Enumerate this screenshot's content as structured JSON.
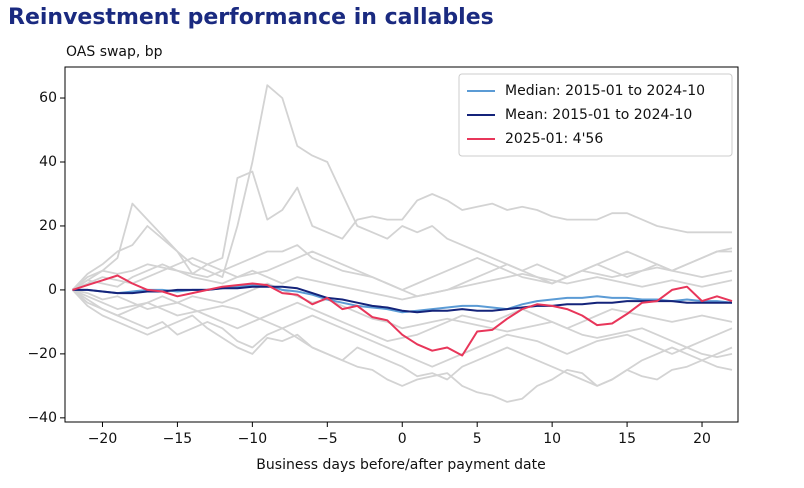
{
  "chart_data": {
    "type": "line",
    "title": "Reinvestment performance in callables",
    "ylabel": "OAS swap, bp",
    "xlabel": "Business days before/after payment date",
    "x": [
      -22,
      -21,
      -20,
      -19,
      -18,
      -17,
      -16,
      -15,
      -14,
      -13,
      -12,
      -11,
      -10,
      -9,
      -8,
      -7,
      -6,
      -5,
      -4,
      -3,
      -2,
      -1,
      0,
      1,
      2,
      3,
      4,
      5,
      6,
      7,
      8,
      9,
      10,
      11,
      12,
      13,
      14,
      15,
      16,
      17,
      18,
      19,
      20,
      21,
      22
    ],
    "xlim": [
      -22.5,
      22.4
    ],
    "ylim": [
      -41.3,
      69.7
    ],
    "xticks": [
      {
        "value": -20,
        "label": "−20"
      },
      {
        "value": -15,
        "label": "−15"
      },
      {
        "value": -10,
        "label": "−10"
      },
      {
        "value": -5,
        "label": "−5"
      },
      0,
      5,
      10,
      15,
      20
    ],
    "yticks": [
      {
        "value": -40,
        "label": "−40"
      },
      {
        "value": -20,
        "label": "−20"
      },
      0,
      20,
      40,
      60
    ],
    "legend": "upper right",
    "background_series": [
      {
        "color": "#d3d3d3",
        "values": [
          0,
          5,
          8,
          12,
          14,
          20,
          16,
          12,
          8,
          6,
          4,
          20,
          40,
          64,
          60,
          45,
          42,
          40,
          30,
          20,
          18,
          16,
          20,
          18,
          20,
          16,
          14,
          12,
          10,
          8,
          6,
          8,
          6,
          4,
          6,
          8,
          6,
          4,
          6,
          8,
          6,
          8,
          10,
          12,
          12
        ]
      },
      {
        "color": "#d3d3d3",
        "values": [
          0,
          3,
          6,
          10,
          27,
          22,
          17,
          12,
          5,
          8,
          10,
          35,
          37,
          22,
          25,
          32,
          20,
          18,
          16,
          22,
          23,
          22,
          22,
          28,
          30,
          28,
          25,
          26,
          27,
          25,
          26,
          25,
          23,
          22,
          22,
          22,
          24,
          24,
          22,
          20,
          19,
          18,
          18,
          18,
          18
        ]
      },
      {
        "color": "#d3d3d3",
        "values": [
          0,
          -5,
          -8,
          -10,
          -12,
          -14,
          -12,
          -10,
          -8,
          -12,
          -15,
          -18,
          -20,
          -15,
          -16,
          -14,
          -18,
          -20,
          -22,
          -24,
          -25,
          -28,
          -30,
          -28,
          -27,
          -26,
          -30,
          -32,
          -33,
          -35,
          -34,
          -30,
          -28,
          -25,
          -26,
          -30,
          -28,
          -25,
          -27,
          -28,
          -25,
          -24,
          -22,
          -20,
          -18
        ]
      },
      {
        "color": "#d3d3d3",
        "values": [
          0,
          -3,
          -6,
          -8,
          -10,
          -12,
          -10,
          -14,
          -12,
          -10,
          -12,
          -16,
          -18,
          -14,
          -12,
          -15,
          -18,
          -20,
          -22,
          -18,
          -20,
          -22,
          -24,
          -27,
          -26,
          -28,
          -24,
          -22,
          -20,
          -18,
          -20,
          -22,
          -24,
          -26,
          -28,
          -30,
          -28,
          -25,
          -22,
          -20,
          -18,
          -20,
          -22,
          -24,
          -25
        ]
      },
      {
        "color": "#d3d3d3",
        "values": [
          0,
          4,
          6,
          5,
          6,
          8,
          7,
          6,
          5,
          4,
          6,
          8,
          10,
          12,
          12,
          14,
          10,
          8,
          6,
          5,
          4,
          2,
          0,
          -2,
          -1,
          0,
          2,
          4,
          6,
          8,
          6,
          4,
          2,
          4,
          6,
          5,
          4,
          5,
          6,
          7,
          6,
          5,
          4,
          5,
          6
        ]
      },
      {
        "color": "#d3d3d3",
        "values": [
          0,
          -2,
          -4,
          -6,
          -5,
          -4,
          -6,
          -8,
          -7,
          -6,
          -5,
          -6,
          -8,
          -10,
          -12,
          -10,
          -8,
          -10,
          -12,
          -14,
          -16,
          -18,
          -20,
          -22,
          -24,
          -22,
          -20,
          -18,
          -16,
          -14,
          -15,
          -16,
          -18,
          -20,
          -18,
          -16,
          -15,
          -14,
          -16,
          -18,
          -20,
          -18,
          -16,
          -14,
          -12
        ]
      },
      {
        "color": "#d3d3d3",
        "values": [
          0,
          2,
          4,
          3,
          2,
          4,
          6,
          8,
          10,
          8,
          6,
          4,
          5,
          6,
          8,
          10,
          12,
          10,
          8,
          6,
          4,
          2,
          0,
          2,
          4,
          6,
          8,
          10,
          8,
          6,
          4,
          3,
          2,
          4,
          6,
          8,
          10,
          12,
          10,
          8,
          6,
          8,
          10,
          12,
          13
        ]
      },
      {
        "color": "#d3d3d3",
        "values": [
          0,
          -1,
          -3,
          -2,
          -4,
          -6,
          -5,
          -4,
          -2,
          -3,
          -4,
          -2,
          0,
          2,
          0,
          -2,
          -4,
          -3,
          -5,
          -7,
          -9,
          -10,
          -12,
          -11,
          -10,
          -9,
          -10,
          -11,
          -12,
          -13,
          -12,
          -11,
          -10,
          -12,
          -14,
          -15,
          -14,
          -13,
          -12,
          -14,
          -16,
          -18,
          -20,
          -21,
          -20
        ]
      },
      {
        "color": "#d3d3d3",
        "values": [
          0,
          3,
          2,
          1,
          4,
          6,
          8,
          6,
          4,
          3,
          2,
          4,
          6,
          4,
          2,
          4,
          3,
          2,
          1,
          0,
          -1,
          -2,
          -3,
          -2,
          -1,
          0,
          1,
          2,
          3,
          4,
          5,
          4,
          3,
          2,
          3,
          4,
          3,
          2,
          1,
          2,
          3,
          2,
          1,
          2,
          3
        ]
      },
      {
        "color": "#d3d3d3",
        "values": [
          0,
          -4,
          -6,
          -8,
          -6,
          -4,
          -2,
          -4,
          -6,
          -8,
          -10,
          -12,
          -10,
          -8,
          -6,
          -4,
          -6,
          -8,
          -10,
          -12,
          -14,
          -16,
          -15,
          -14,
          -12,
          -10,
          -8,
          -9,
          -10,
          -8,
          -6,
          -8,
          -10,
          -12,
          -10,
          -8,
          -6,
          -7,
          -8,
          -9,
          -10,
          -9,
          -8,
          -9,
          -10
        ]
      }
    ],
    "series": [
      {
        "name": "Median: 2015-01 to 2024-10",
        "color": "#5b9bd5",
        "values": [
          0,
          0,
          -0.5,
          -1,
          -0.5,
          0,
          0,
          -0.5,
          0,
          0,
          0.5,
          1,
          1.5,
          1.5,
          0,
          -0.5,
          -1.5,
          -3,
          -4,
          -5,
          -5.5,
          -6,
          -7,
          -6.5,
          -6,
          -5.5,
          -5,
          -5,
          -5.5,
          -6,
          -4.5,
          -3.5,
          -3,
          -2.5,
          -2.5,
          -2,
          -2.5,
          -2.5,
          -3,
          -3,
          -3.5,
          -3,
          -3.5,
          -3.5,
          -4
        ]
      },
      {
        "name": "Mean: 2015-01 to 2024-10",
        "color": "#14237a",
        "values": [
          0,
          0,
          -0.5,
          -1,
          -1,
          -0.5,
          -0.5,
          0,
          0,
          0,
          0.5,
          0.5,
          1,
          1,
          1,
          0.5,
          -1,
          -2.5,
          -3,
          -4,
          -5,
          -5.5,
          -6.5,
          -7,
          -6.5,
          -6.5,
          -6,
          -6.5,
          -6.5,
          -6,
          -5.5,
          -5,
          -5,
          -4.5,
          -4.5,
          -4,
          -4,
          -3.5,
          -3.5,
          -3.5,
          -3.5,
          -4,
          -4,
          -4,
          -4
        ]
      },
      {
        "name": "2025-01: 4'56",
        "color": "#e8365a",
        "values": [
          0,
          1.5,
          3,
          4.5,
          2,
          0,
          -0.5,
          -2,
          -1,
          0,
          1,
          1.5,
          2,
          1.5,
          -1,
          -1.5,
          -4.5,
          -2.5,
          -6,
          -5,
          -8.5,
          -9.5,
          -14,
          -17,
          -19,
          -18,
          -20.5,
          -13,
          -12.5,
          -9,
          -6,
          -4.5,
          -5,
          -6,
          -8,
          -11,
          -10.5,
          -7.5,
          -4,
          -3.5,
          0,
          1,
          -3.5,
          -2,
          -3.5
        ]
      }
    ]
  }
}
